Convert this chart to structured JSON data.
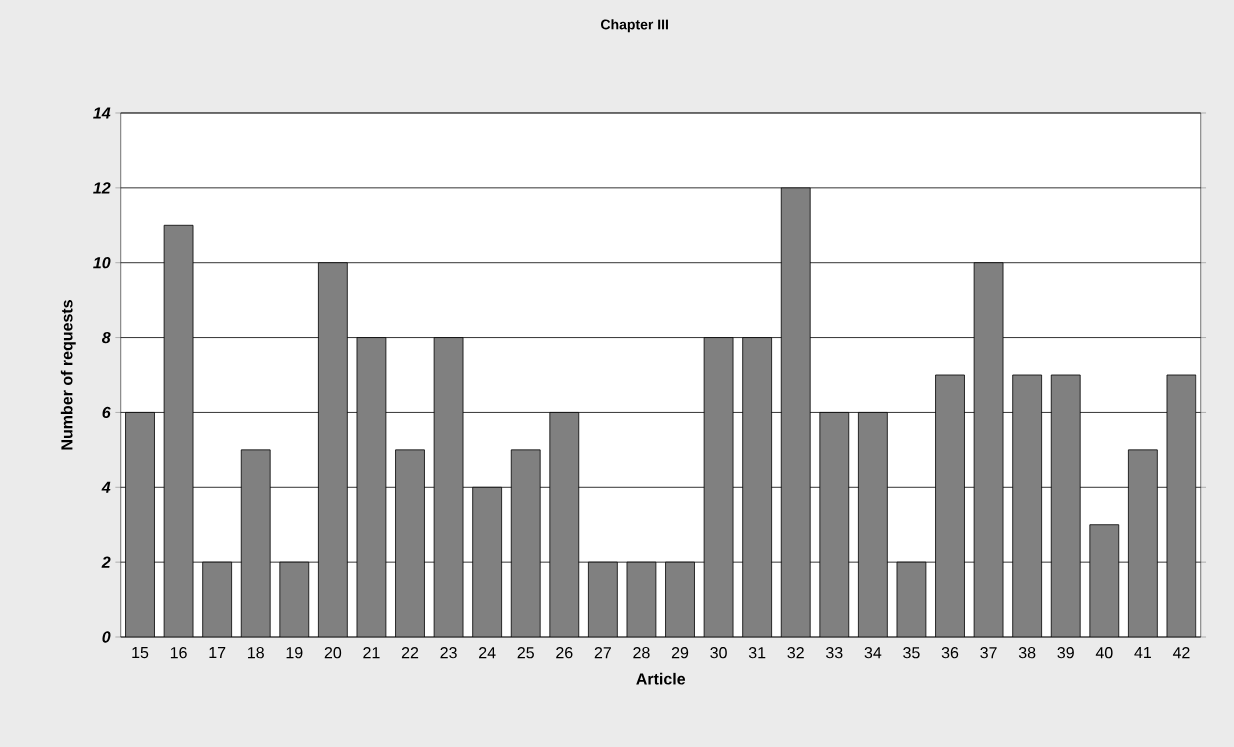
{
  "chart_data": {
    "type": "bar",
    "title": "Chapter III",
    "xlabel": "Article",
    "ylabel": "Number of requests",
    "categories": [
      "15",
      "16",
      "17",
      "18",
      "19",
      "20",
      "21",
      "22",
      "23",
      "24",
      "25",
      "26",
      "27",
      "28",
      "29",
      "30",
      "31",
      "32",
      "33",
      "34",
      "35",
      "36",
      "37",
      "38",
      "39",
      "40",
      "41",
      "42"
    ],
    "values": [
      6,
      11,
      2,
      5,
      2,
      10,
      8,
      5,
      8,
      4,
      5,
      6,
      2,
      2,
      2,
      8,
      8,
      12,
      6,
      6,
      2,
      7,
      10,
      7,
      7,
      3,
      5,
      7
    ],
    "color": "#808080",
    "ylim": [
      0,
      14
    ],
    "yticks": [
      0,
      2,
      4,
      6,
      8,
      10,
      12,
      14
    ],
    "grid": "y"
  }
}
